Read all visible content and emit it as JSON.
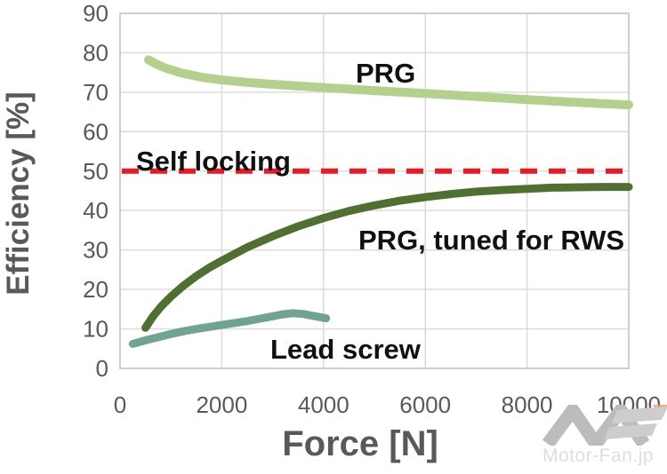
{
  "watermark": {
    "logo": "MF",
    "text": "Motor-Fan.jp"
  },
  "colors": {
    "prg": "#b3d08c",
    "prg_rws": "#4f7030",
    "lead_screw": "#6fa392",
    "threshold_red": "#e51c23",
    "axis_text": "#595959",
    "gridline": "#d9d9d9",
    "plot_border": "#c4c4c4",
    "annotation_text": "#111111"
  },
  "chart_data": {
    "type": "line",
    "title": "",
    "xlabel": "Force [N]",
    "ylabel": "Efficiency [%]",
    "xlim": [
      0,
      10000
    ],
    "ylim": [
      0,
      90
    ],
    "x_ticks": [
      0,
      2000,
      4000,
      6000,
      8000,
      10000
    ],
    "y_ticks": [
      0,
      10,
      20,
      30,
      40,
      50,
      60,
      70,
      80,
      90
    ],
    "grid": true,
    "legend": "none (inline annotations)",
    "threshold": {
      "value": 50,
      "color": "#e51c23",
      "style": "dashed"
    },
    "series": [
      {
        "name": "PRG",
        "color": "#b3d08c",
        "width": 10,
        "points": [
          [
            560,
            78.2
          ],
          [
            700,
            77.2
          ],
          [
            900,
            76.1
          ],
          [
            1200,
            74.9
          ],
          [
            1600,
            73.8
          ],
          [
            2000,
            73.1
          ],
          [
            2500,
            72.5
          ],
          [
            3000,
            72.0
          ],
          [
            4000,
            71.2
          ],
          [
            5000,
            70.4
          ],
          [
            6000,
            69.7
          ],
          [
            7000,
            68.9
          ],
          [
            8000,
            68.1
          ],
          [
            9000,
            67.4
          ],
          [
            10000,
            66.8
          ]
        ]
      },
      {
        "name": "PRG, tuned for RWS",
        "color": "#4f7030",
        "width": 9,
        "points": [
          [
            500,
            10.3
          ],
          [
            650,
            13.2
          ],
          [
            800,
            15.6
          ],
          [
            1000,
            18.2
          ],
          [
            1250,
            21.0
          ],
          [
            1500,
            23.4
          ],
          [
            1750,
            25.5
          ],
          [
            2000,
            27.3
          ],
          [
            2500,
            30.7
          ],
          [
            3000,
            33.5
          ],
          [
            3500,
            36.0
          ],
          [
            4000,
            38.1
          ],
          [
            4500,
            39.9
          ],
          [
            5000,
            41.3
          ],
          [
            5500,
            42.5
          ],
          [
            6000,
            43.4
          ],
          [
            6500,
            44.2
          ],
          [
            7000,
            44.8
          ],
          [
            7500,
            45.2
          ],
          [
            8000,
            45.5
          ],
          [
            8500,
            45.8
          ],
          [
            9000,
            45.9
          ],
          [
            9500,
            46.0
          ],
          [
            10000,
            46.0
          ]
        ]
      },
      {
        "name": "Lead screw",
        "color": "#6fa392",
        "width": 9,
        "points": [
          [
            250,
            6.2
          ],
          [
            500,
            7.1
          ],
          [
            750,
            7.9
          ],
          [
            1000,
            8.7
          ],
          [
            1250,
            9.4
          ],
          [
            1500,
            10.0
          ],
          [
            1750,
            10.5
          ],
          [
            2000,
            11.0
          ],
          [
            2250,
            11.5
          ],
          [
            2500,
            12.0
          ],
          [
            2750,
            12.6
          ],
          [
            3000,
            13.2
          ],
          [
            3200,
            13.7
          ],
          [
            3400,
            14.0
          ],
          [
            3600,
            13.8
          ],
          [
            3800,
            13.3
          ],
          [
            4050,
            12.7
          ]
        ]
      }
    ],
    "annotations": [
      {
        "id": "prg",
        "text": "PRG"
      },
      {
        "id": "self-locking",
        "text": "Self locking"
      },
      {
        "id": "prg-rws",
        "text": "PRG, tuned for RWS"
      },
      {
        "id": "lead-screw",
        "text": "Lead screw"
      }
    ]
  }
}
